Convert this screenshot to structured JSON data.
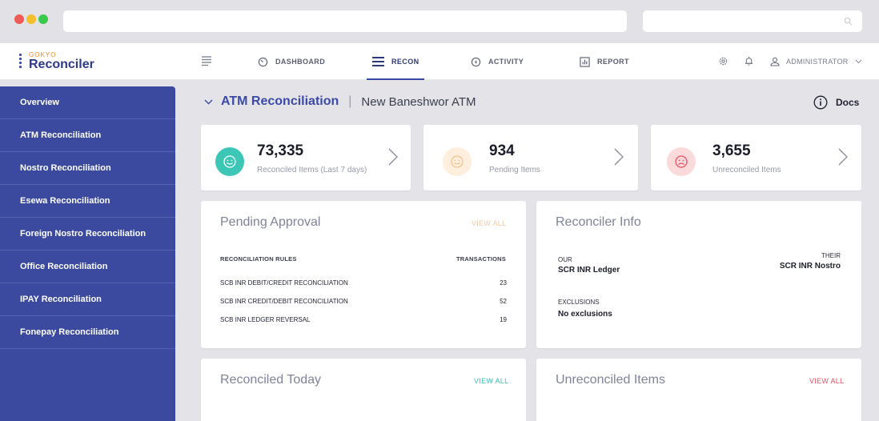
{
  "brand": {
    "small": "GOKYO",
    "big": "Reconciler"
  },
  "nav": [
    {
      "label": "DASHBOARD"
    },
    {
      "label": "RECON"
    },
    {
      "label": "ACTIVITY"
    },
    {
      "label": "REPORT"
    }
  ],
  "user": {
    "label": "ADMINISTRATOR"
  },
  "sidebar": {
    "items": [
      {
        "label": "Overview"
      },
      {
        "label": "ATM Reconciliation"
      },
      {
        "label": "Nostro Reconciliation"
      },
      {
        "label": "Esewa Reconciliation"
      },
      {
        "label": "Foreign Nostro Reconciliation"
      },
      {
        "label": "Office Reconciliation"
      },
      {
        "label": "IPAY Reconciliation"
      },
      {
        "label": "Fonepay Reconciliation"
      }
    ]
  },
  "page": {
    "title": "ATM Reconciliation",
    "separator": "|",
    "subtitle": "New Baneshwor ATM",
    "docs": "Docs"
  },
  "stats": [
    {
      "value": "73,335",
      "label": "Reconciled Items (Last 7 days)",
      "color": "#3cc6b6"
    },
    {
      "value": "934",
      "label": "Pending Items",
      "color": "#f6c28f"
    },
    {
      "value": "3,655",
      "label": "Unreconciled Items",
      "color": "#e6505f"
    }
  ],
  "pending": {
    "title": "Pending Approval",
    "view_all": "VIEW ALL",
    "col_rules": "RECONCILIATION RULES",
    "col_tx": "TRANSACTIONS",
    "rows": [
      {
        "rule": "SCB INR DEBIT/CREDIT RECONCILIATION",
        "tx": "23"
      },
      {
        "rule": "SCB INR CREDIT/DEBIT RECONCILIATION",
        "tx": "52"
      },
      {
        "rule": "SCB INR LEDGER REVERSAL",
        "tx": "19"
      }
    ]
  },
  "info": {
    "title": "Reconciler Info",
    "our_label": "OUR",
    "our_value": "SCR INR Ledger",
    "their_label": "THEIR",
    "their_value": "SCR INR Nostro",
    "excl_label": "EXCLUSIONS",
    "excl_value": "No exclusions"
  },
  "reconciled_today": {
    "title": "Reconciled Today",
    "view_all": "VIEW ALL"
  },
  "unreconciled": {
    "title": "Unreconciled Items",
    "view_all": "VIEW ALL"
  },
  "colors": {
    "accent": "#3b4aa6",
    "sidebar": "#3b4a9e",
    "teal": "#3cc6b6",
    "orange": "#f0b98a",
    "red": "#e6505f"
  }
}
